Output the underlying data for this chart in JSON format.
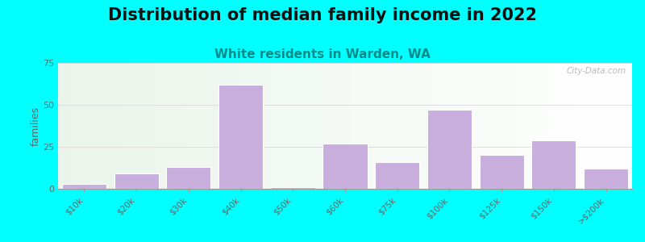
{
  "title": "Distribution of median family income in 2022",
  "subtitle": "White residents in Warden, WA",
  "categories": [
    "$10k",
    "$20k",
    "$30k",
    "$40k",
    "$50k",
    "$60k",
    "$75k",
    "$100k",
    "$125k",
    "$150k",
    ">$200k"
  ],
  "values": [
    3,
    9,
    13,
    62,
    1,
    27,
    16,
    47,
    20,
    29,
    12
  ],
  "bar_color": "#c8aedd",
  "bar_edge_color": "#ffffff",
  "ylabel": "families",
  "ylim": [
    0,
    75
  ],
  "yticks": [
    0,
    25,
    50,
    75
  ],
  "background_color": "#00ffff",
  "title_fontsize": 15,
  "subtitle_fontsize": 11,
  "subtitle_color": "#008b8b",
  "watermark": "City-Data.com",
  "tick_color": "#666666",
  "axis_color": "#999999",
  "grid_color": "#dddddd"
}
